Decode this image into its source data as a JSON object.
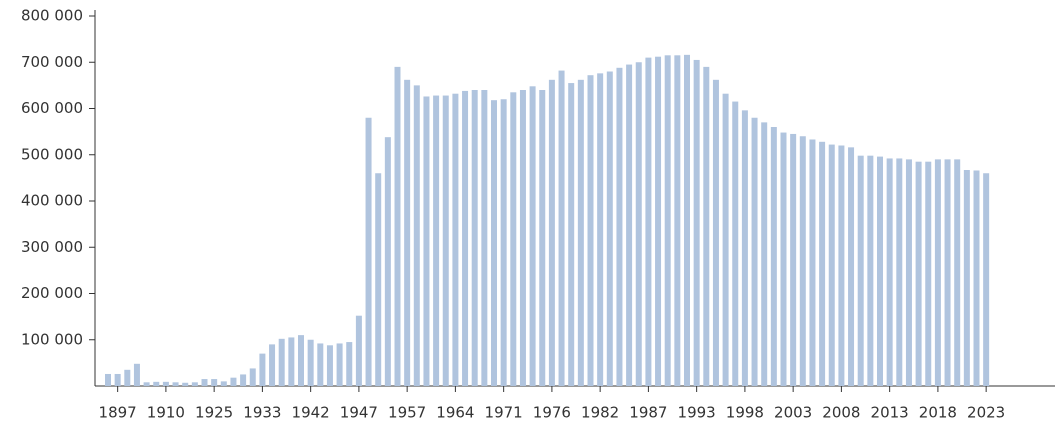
{
  "chart_data": {
    "type": "bar",
    "color": "#b0c4de",
    "categories": [
      null,
      "1897",
      null,
      null,
      null,
      null,
      "1910",
      null,
      null,
      null,
      null,
      "1925",
      null,
      null,
      null,
      null,
      "1933",
      null,
      null,
      null,
      null,
      "1942",
      null,
      null,
      null,
      null,
      "1947",
      null,
      null,
      null,
      null,
      "1957",
      null,
      null,
      null,
      null,
      "1964",
      null,
      null,
      null,
      null,
      "1971",
      null,
      null,
      null,
      null,
      "1976",
      null,
      null,
      null,
      null,
      "1982",
      null,
      null,
      null,
      null,
      "1987",
      null,
      null,
      null,
      null,
      "1993",
      null,
      null,
      null,
      null,
      "1998",
      null,
      null,
      null,
      null,
      "2003",
      null,
      null,
      null,
      null,
      "2008",
      null,
      null,
      null,
      null,
      "2013",
      null,
      null,
      null,
      null,
      "2018",
      null,
      null,
      null,
      null,
      "2023"
    ],
    "values": [
      26000,
      26000,
      35000,
      48000,
      8000,
      9000,
      9000,
      8000,
      7000,
      8000,
      15000,
      15000,
      10000,
      18000,
      25000,
      38000,
      70000,
      90000,
      102000,
      105000,
      110000,
      100000,
      92000,
      88000,
      92000,
      95000,
      152000,
      580000,
      460000,
      538000,
      690000,
      662000,
      650000,
      626000,
      628000,
      628000,
      632000,
      638000,
      640000,
      640000,
      618000,
      620000,
      635000,
      640000,
      648000,
      640000,
      662000,
      682000,
      655000,
      662000,
      672000,
      676000,
      680000,
      688000,
      695000,
      700000,
      710000,
      712000,
      715000,
      715000,
      716000,
      705000,
      690000,
      662000,
      632000,
      615000,
      596000,
      580000,
      570000,
      560000,
      548000,
      545000,
      540000,
      533000,
      528000,
      522000,
      520000,
      516000,
      498000,
      498000,
      496000,
      492000,
      492000,
      490000,
      485000,
      485000,
      490000,
      490000,
      490000,
      467000,
      466000,
      460000
    ],
    "ylim": [
      0,
      800000
    ],
    "yticks": [
      {
        "value": 100000,
        "label": "100 000"
      },
      {
        "value": 200000,
        "label": "200 000"
      },
      {
        "value": 300000,
        "label": "300 000"
      },
      {
        "value": 400000,
        "label": "400 000"
      },
      {
        "value": 500000,
        "label": "500 000"
      },
      {
        "value": 600000,
        "label": "600 000"
      },
      {
        "value": 700000,
        "label": "700 000"
      },
      {
        "value": 800000,
        "label": "800 000"
      }
    ]
  }
}
